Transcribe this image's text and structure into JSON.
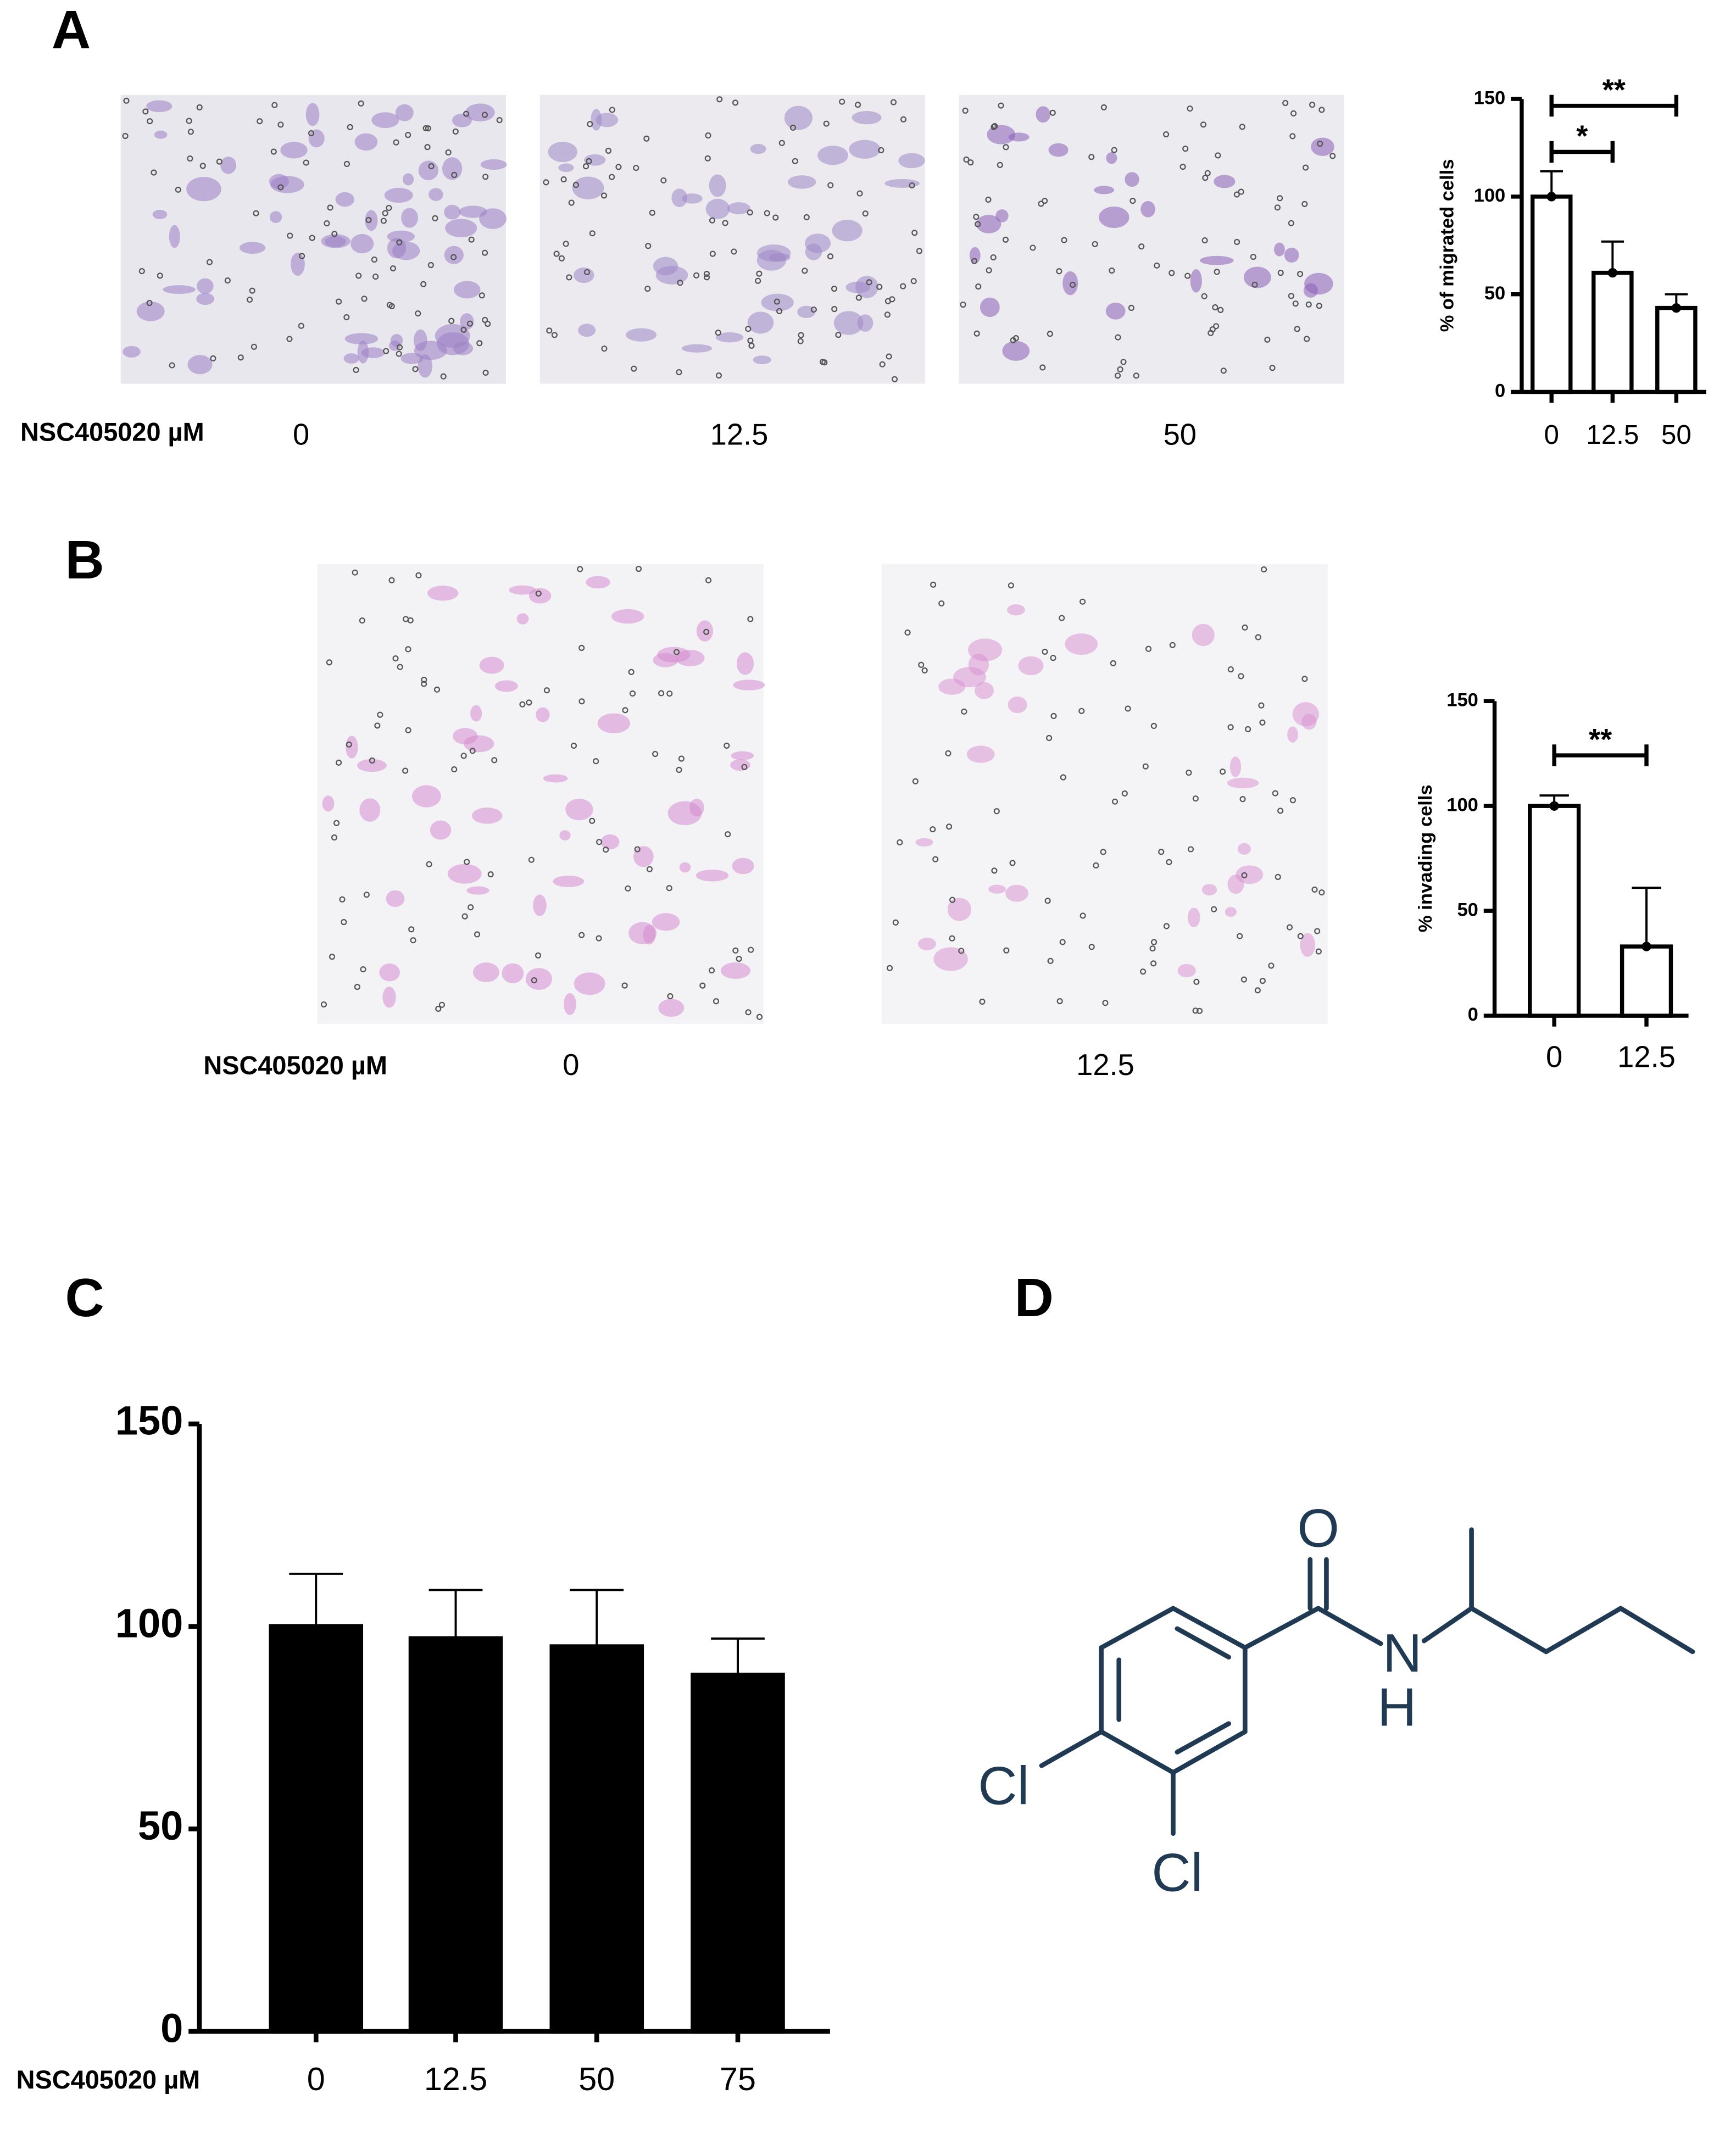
{
  "panel_labels": [
    "A",
    "B",
    "C",
    "D"
  ],
  "image_rows": [
    {
      "label": "NSC405020 µM",
      "doses": [
        "0",
        "12.5",
        "50"
      ]
    },
    {
      "label": "NSC405020 µM",
      "doses": [
        "0",
        "12.5"
      ]
    }
  ],
  "chart_data": [
    {
      "type": "bar",
      "ylabel": "% of migrated cells",
      "categories": [
        "0",
        "12.5",
        "50"
      ],
      "values": [
        100,
        61,
        43
      ],
      "errors": [
        13,
        16,
        7
      ],
      "color": "#ffffff",
      "ylim": [
        0,
        150
      ],
      "yticks": [
        0,
        50,
        100,
        150
      ],
      "annotations": [
        {
          "text": "*",
          "between": [
            "0",
            "12.5"
          ]
        },
        {
          "text": "**",
          "between": [
            "0",
            "50"
          ]
        }
      ]
    },
    {
      "type": "bar",
      "ylabel": "% invading cells",
      "categories": [
        "0",
        "12.5"
      ],
      "values": [
        100,
        33
      ],
      "errors": [
        5,
        28
      ],
      "color": "#ffffff",
      "ylim": [
        0,
        150
      ],
      "yticks": [
        0,
        50,
        100,
        150
      ],
      "annotations": [
        {
          "text": "**",
          "between": [
            "0",
            "12.5"
          ]
        }
      ]
    },
    {
      "type": "bar",
      "xlabel": "NSC405020 µM",
      "categories": [
        "0",
        "12.5",
        "50",
        "75"
      ],
      "values": [
        100,
        97,
        95,
        88
      ],
      "errors": [
        13,
        12,
        14,
        9
      ],
      "color": "#000000",
      "ylim": [
        0,
        150
      ],
      "yticks": [
        0,
        50,
        100,
        150
      ]
    }
  ],
  "structure": {
    "atoms": [
      "O",
      "N",
      "H",
      "Cl",
      "Cl"
    ]
  }
}
